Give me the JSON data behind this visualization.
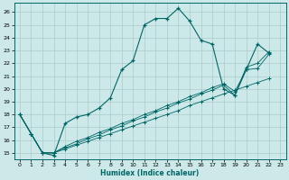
{
  "xlabel": "Humidex (Indice chaleur)",
  "bg_color": "#cce8e8",
  "grid_color": "#aacccc",
  "line_color": "#006666",
  "xlim": [
    -0.5,
    23.5
  ],
  "ylim": [
    14.5,
    26.7
  ],
  "yticks": [
    15,
    16,
    17,
    18,
    19,
    20,
    21,
    22,
    23,
    24,
    25,
    26
  ],
  "xticks": [
    0,
    1,
    2,
    3,
    4,
    5,
    6,
    7,
    8,
    9,
    10,
    11,
    12,
    13,
    14,
    15,
    16,
    17,
    18,
    19,
    20,
    21,
    22,
    23
  ],
  "series": [
    [
      18.0,
      16.5,
      15.0,
      14.8,
      17.3,
      17.8,
      18.0,
      18.5,
      19.3,
      21.5,
      22.2,
      25.0,
      25.5,
      25.5,
      26.3,
      25.3,
      23.8,
      23.5,
      20.0,
      19.5,
      21.5,
      23.5,
      22.8
    ],
    [
      18.0,
      16.5,
      15.0,
      15.0,
      15.3,
      15.6,
      15.9,
      16.2,
      16.5,
      16.8,
      17.1,
      17.4,
      17.7,
      18.0,
      18.3,
      18.7,
      19.0,
      19.3,
      19.6,
      19.9,
      20.2,
      20.5,
      20.8
    ],
    [
      18.0,
      16.5,
      15.0,
      15.0,
      15.4,
      15.7,
      16.1,
      16.4,
      16.8,
      17.1,
      17.5,
      17.8,
      18.2,
      18.5,
      18.9,
      19.2,
      19.6,
      19.9,
      20.3,
      19.5,
      21.7,
      22.0,
      22.9
    ],
    [
      18.0,
      16.5,
      15.0,
      15.0,
      15.5,
      15.9,
      16.2,
      16.6,
      16.9,
      17.3,
      17.6,
      18.0,
      18.3,
      18.7,
      19.0,
      19.4,
      19.7,
      20.1,
      20.4,
      19.8,
      21.5,
      21.6,
      22.7
    ]
  ]
}
